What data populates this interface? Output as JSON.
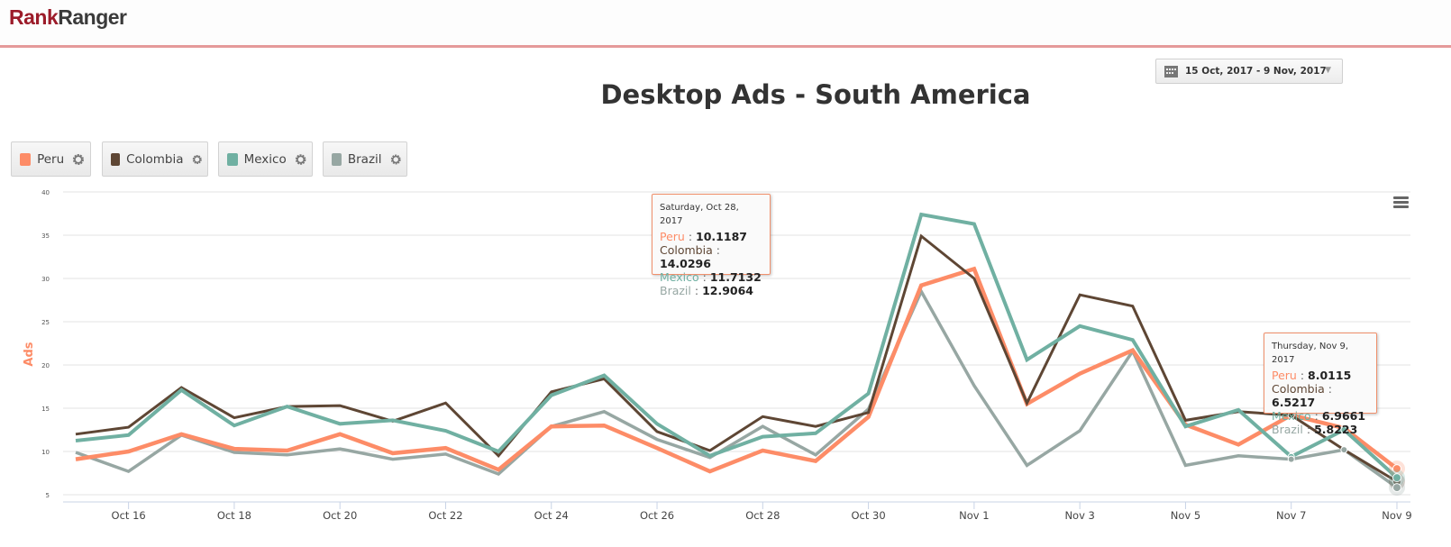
{
  "header": {
    "logo_part1": "Rank",
    "logo_part2": "Ranger"
  },
  "date_range": {
    "icon": "calendar-icon",
    "label": "15 Oct, 2017 - 9 Nov, 2017",
    "caret": "▼"
  },
  "legend_items": [
    {
      "label": "Peru",
      "color": "#fd8c67"
    },
    {
      "label": "Colombia",
      "color": "#5e4634"
    },
    {
      "label": "Mexico",
      "color": "#70b0a2"
    },
    {
      "label": "Brazil",
      "color": "#97a7a3"
    }
  ],
  "tooltips": [
    {
      "date": "Saturday, Oct 28, 2017",
      "rows": [
        {
          "name": "Peru",
          "value": "10.1187",
          "color": "#fd8c67"
        },
        {
          "name": "Colombia",
          "value": "14.0296",
          "color": "#5e4634"
        },
        {
          "name": "Mexico",
          "value": "11.7132",
          "color": "#70b0a2"
        },
        {
          "name": "Brazil",
          "value": "12.9064",
          "color": "#97a7a3"
        }
      ]
    },
    {
      "date": "Thursday, Nov 9, 2017",
      "rows": [
        {
          "name": "Peru",
          "value": "8.0115",
          "color": "#fd8c67"
        },
        {
          "name": "Colombia",
          "value": "6.5217",
          "color": "#5e4634"
        },
        {
          "name": "Mexico",
          "value": "6.9661",
          "color": "#70b0a2"
        },
        {
          "name": "Brazil",
          "value": "5.8223",
          "color": "#97a7a3"
        }
      ]
    }
  ],
  "chart_data": {
    "type": "line",
    "title": "Desktop Ads - South America",
    "xlabel": "",
    "ylabel": "Ads",
    "ylim": [
      5,
      40
    ],
    "yticks": [
      5,
      10,
      15,
      20,
      25,
      30,
      35,
      40
    ],
    "grid": true,
    "legend": "top-left",
    "x": [
      "Oct 15",
      "Oct 16",
      "Oct 17",
      "Oct 18",
      "Oct 19",
      "Oct 20",
      "Oct 21",
      "Oct 22",
      "Oct 23",
      "Oct 24",
      "Oct 25",
      "Oct 26",
      "Oct 27",
      "Oct 28",
      "Oct 29",
      "Oct 30",
      "Oct 31",
      "Nov 1",
      "Nov 2",
      "Nov 3",
      "Nov 4",
      "Nov 5",
      "Nov 6",
      "Nov 7",
      "Nov 8",
      "Nov 9"
    ],
    "xtick_labels": [
      "Oct 16",
      "Oct 18",
      "Oct 20",
      "Oct 22",
      "Oct 24",
      "Oct 26",
      "Oct 28",
      "Oct 30",
      "Nov 1",
      "Nov 3",
      "Nov 5",
      "Nov 7",
      "Nov 9"
    ],
    "series": [
      {
        "name": "Peru",
        "color": "#fd8c67",
        "values": [
          9.1,
          10.0,
          12.0,
          10.3,
          10.1,
          12.0,
          9.8,
          10.4,
          7.9,
          12.9,
          13.0,
          10.4,
          7.7,
          10.1187,
          8.9,
          14.0,
          29.2,
          31.1,
          15.5,
          19.0,
          21.7,
          13.1,
          10.8,
          14.2,
          12.7,
          8.0115
        ]
      },
      {
        "name": "Colombia",
        "color": "#5e4634",
        "values": [
          12.0,
          12.8,
          17.4,
          13.9,
          15.2,
          15.3,
          13.5,
          15.6,
          9.5,
          16.9,
          18.4,
          12.3,
          10.1,
          14.0296,
          12.9,
          14.5,
          34.9,
          30.0,
          15.6,
          28.1,
          26.8,
          13.6,
          14.6,
          14.2,
          10.2,
          6.5217
        ]
      },
      {
        "name": "Mexico",
        "color": "#70b0a2",
        "values": [
          11.25,
          11.9,
          17.1,
          13.0,
          15.2,
          13.2,
          13.6,
          12.4,
          10.0,
          16.5,
          18.8,
          13.2,
          9.5,
          11.7132,
          12.1,
          16.7,
          37.4,
          36.3,
          20.6,
          24.5,
          22.9,
          12.9,
          14.8,
          9.4,
          12.5,
          6.9661
        ]
      },
      {
        "name": "Brazil",
        "color": "#97a7a3",
        "values": [
          9.9,
          7.7,
          11.9,
          9.9,
          9.6,
          10.3,
          9.1,
          9.7,
          7.4,
          12.9,
          14.6,
          11.4,
          9.3,
          12.9064,
          9.6,
          14.9,
          28.5,
          17.6,
          8.4,
          12.4,
          21.6,
          8.4,
          9.5,
          9.1,
          10.2,
          5.8223
        ]
      }
    ]
  }
}
